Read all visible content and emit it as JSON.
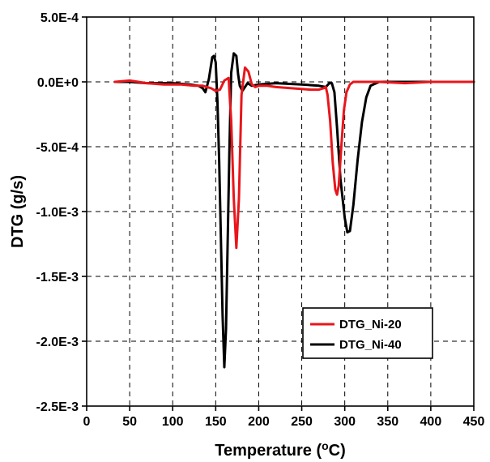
{
  "chart_data": {
    "type": "line",
    "xlabel": "Temperature (",
    "xlabel_sup": "o",
    "xlabel_unit": "C)",
    "ylabel": "DTG (g/s)",
    "xlim": [
      0,
      450
    ],
    "ylim": [
      -0.0025,
      0.0005
    ],
    "x_ticks": [
      0,
      50,
      100,
      150,
      200,
      250,
      300,
      350,
      400,
      450
    ],
    "y_ticks": [
      0.0005,
      0,
      -0.0005,
      -0.001,
      -0.0015,
      -0.002,
      -0.0025
    ],
    "x_tick_labels": [
      "0",
      "50",
      "100",
      "150",
      "200",
      "250",
      "300",
      "350",
      "400",
      "450"
    ],
    "y_tick_labels": [
      "5.0E-4",
      "0.0E+0",
      "-5.0E-4",
      "-1.0E-3",
      "-1.5E-3",
      "-2.0E-3",
      "-2.5E-3"
    ],
    "grid": true,
    "legend_position": "bottom-right",
    "series": [
      {
        "name": "DTG_Ni-20",
        "color": "#e8161b",
        "x": [
          33,
          50,
          70,
          90,
          110,
          125,
          135,
          140,
          145,
          150,
          155,
          160,
          165,
          168,
          171,
          174,
          177,
          180,
          184,
          188,
          192,
          196,
          200,
          210,
          220,
          240,
          260,
          270,
          275,
          278,
          280,
          283,
          286,
          289,
          291,
          293,
          296,
          299,
          302,
          306,
          310,
          320,
          340,
          370,
          400,
          450
        ],
        "y": [
          0,
          1e-05,
          -1e-05,
          -2e-05,
          -2e-05,
          -3e-05,
          -3e-05,
          -4e-05,
          -5e-05,
          -7e-05,
          -6e-05,
          1e-05,
          3e-05,
          -0.0003,
          -0.0009,
          -0.00128,
          -0.0009,
          -0.0001,
          0.00011,
          8e-05,
          -2e-05,
          -4e-05,
          -3e-05,
          -3e-05,
          -4e-05,
          -5e-05,
          -6e-05,
          -6e-05,
          -5e-05,
          -4e-05,
          -0.0001,
          -0.0003,
          -0.00062,
          -0.00083,
          -0.00087,
          -0.0008,
          -0.0005,
          -0.00022,
          -8e-05,
          -2e-05,
          0,
          0,
          0,
          -1e-05,
          0,
          0
        ]
      },
      {
        "name": "DTG_Ni-40",
        "color": "#000000",
        "x": [
          33,
          50,
          70,
          100,
          120,
          130,
          135,
          138,
          142,
          146,
          148,
          150,
          152,
          154,
          156,
          158,
          160,
          162,
          164,
          166,
          168,
          171,
          174,
          176,
          178,
          181,
          184,
          187,
          192,
          200,
          220,
          250,
          270,
          278,
          282,
          285,
          288,
          291,
          295,
          300,
          303,
          306,
          310,
          315,
          320,
          325,
          330,
          340,
          360,
          400,
          450
        ],
        "y": [
          0,
          0,
          -1e-05,
          -1e-05,
          -2e-05,
          -3e-05,
          -5e-05,
          -8e-05,
          2e-05,
          0.00019,
          0.0002,
          0.00015,
          -0.00015,
          -0.0006,
          -0.0012,
          -0.0018,
          -0.0022,
          -0.0019,
          -0.0012,
          -0.0005,
          7e-05,
          0.00022,
          0.0002,
          6e-05,
          -3e-05,
          -7e-05,
          -4e-05,
          -1e-05,
          -3e-05,
          -2e-05,
          -1e-05,
          -2e-05,
          -3e-05,
          -4e-05,
          -1e-05,
          -1e-05,
          -8e-05,
          -0.00035,
          -0.00075,
          -0.00105,
          -0.00116,
          -0.00115,
          -0.00095,
          -0.0006,
          -0.00031,
          -0.00012,
          -3e-05,
          0,
          0,
          0,
          0
        ]
      }
    ]
  }
}
